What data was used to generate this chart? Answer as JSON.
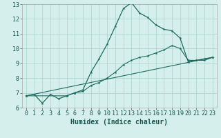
{
  "xlabel": "Humidex (Indice chaleur)",
  "background_color": "#d5efec",
  "grid_color": "#b0d5d0",
  "line_color": "#1a6b60",
  "xlim": [
    -0.5,
    23.5
  ],
  "ylim": [
    6,
    13
  ],
  "yticks": [
    6,
    7,
    8,
    9,
    10,
    11,
    12,
    13
  ],
  "xticks": [
    0,
    1,
    2,
    3,
    4,
    5,
    6,
    7,
    8,
    9,
    10,
    11,
    12,
    13,
    14,
    15,
    16,
    17,
    18,
    19,
    20,
    21,
    22,
    23
  ],
  "series1_x": [
    0,
    1,
    2,
    3,
    4,
    5,
    6,
    7,
    8,
    9,
    10,
    11,
    12,
    13,
    14,
    15,
    16,
    17,
    18,
    19,
    20,
    21,
    22,
    23
  ],
  "series1_y": [
    6.8,
    6.9,
    6.3,
    6.9,
    6.6,
    6.8,
    7.0,
    7.2,
    8.4,
    9.3,
    10.3,
    11.5,
    12.7,
    13.1,
    12.4,
    12.1,
    11.6,
    11.3,
    11.2,
    10.7,
    9.1,
    9.2,
    9.3,
    9.4
  ],
  "series2_x": [
    0,
    5,
    6,
    7,
    8,
    9,
    10,
    11,
    12,
    13,
    14,
    15,
    16,
    17,
    18,
    19,
    20,
    21,
    22,
    23
  ],
  "series2_y": [
    6.8,
    6.8,
    7.0,
    7.1,
    7.5,
    7.7,
    8.0,
    8.4,
    8.9,
    9.2,
    9.4,
    9.5,
    9.7,
    9.9,
    10.2,
    10.0,
    9.2,
    9.2,
    9.2,
    9.4
  ],
  "series3_x": [
    0,
    23
  ],
  "series3_y": [
    6.8,
    9.4
  ],
  "tick_fontsize": 6,
  "xlabel_fontsize": 7
}
